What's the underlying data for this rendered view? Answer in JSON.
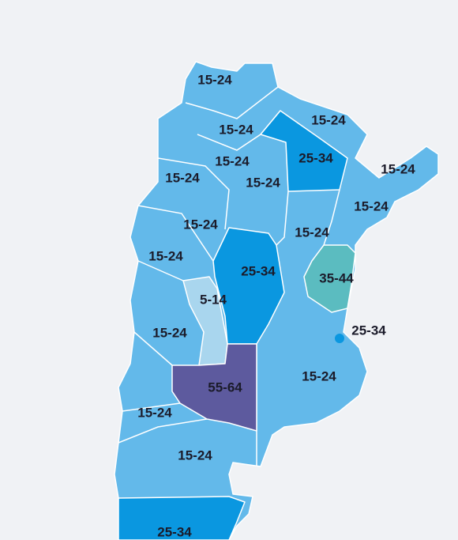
{
  "regions": [
    {
      "label": "15-24"
    },
    {
      "label": "15-24"
    },
    {
      "label": "15-24"
    },
    {
      "label": "25-34"
    },
    {
      "label": "15-24"
    },
    {
      "label": "15-24"
    },
    {
      "label": "15-24"
    },
    {
      "label": "15-24"
    },
    {
      "label": "15-24"
    },
    {
      "label": "15-24"
    },
    {
      "label": "15-24"
    },
    {
      "label": "15-24"
    },
    {
      "label": "25-34"
    },
    {
      "label": "35-44"
    },
    {
      "label": "5-14"
    },
    {
      "label": "25-34"
    },
    {
      "label": "15-24"
    },
    {
      "label": "15-24"
    },
    {
      "label": "55-64"
    },
    {
      "label": "15-24"
    },
    {
      "label": "15-24"
    },
    {
      "label": "25-34"
    }
  ]
}
